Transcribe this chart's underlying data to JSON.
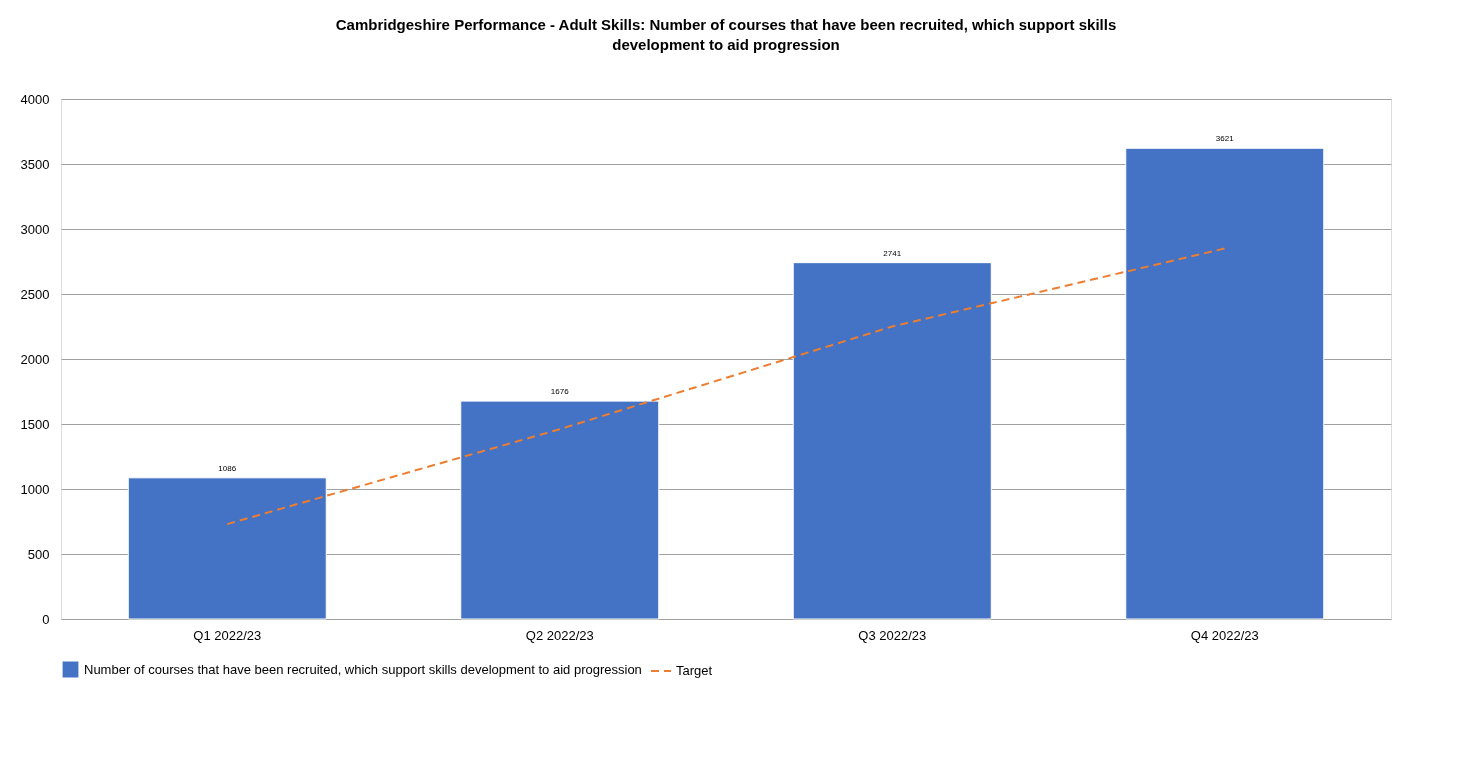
{
  "chart_data": {
    "type": "bar",
    "title": "Cambridgeshire Performance - Adult Skills: Number of courses that have been recruited, which support skills development to aid progression",
    "categories": [
      "Q1 2022/23",
      "Q2 2022/23",
      "Q3 2022/23",
      "Q4 2022/23"
    ],
    "series": [
      {
        "name": "Number of courses that have been recruited, which support skills development to aid progression",
        "color": "#4472c4",
        "values": [
          1086,
          1676,
          2741,
          3621
        ],
        "value_labels": [
          "1086",
          "1676",
          "2741",
          "3621"
        ]
      },
      {
        "name": "Target",
        "type": "line",
        "color": "#ed7d31",
        "line_style": "dashed",
        "values": [
          730,
          1460,
          2250,
          2850
        ]
      }
    ],
    "ylim": [
      0,
      4000
    ],
    "yticks": [
      0,
      500,
      1000,
      1500,
      2000,
      2500,
      3000,
      3500,
      4000
    ],
    "grid": "y",
    "legend": "bottom"
  }
}
